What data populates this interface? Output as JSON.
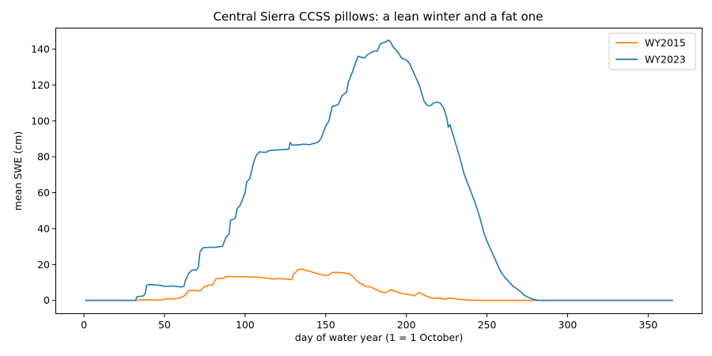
{
  "chart_data": {
    "type": "line",
    "title": "Central Sierra CCSS pillows: a lean winter and a fat one",
    "xlabel": "day of water year (1 = 1 October)",
    "ylabel": "mean SWE (cm)",
    "xlim": [
      -17.2,
      383.2
    ],
    "ylim": [
      -7.2,
      151.5
    ],
    "xticks": [
      0,
      50,
      100,
      150,
      200,
      250,
      300,
      350
    ],
    "yticks": [
      0,
      20,
      40,
      60,
      80,
      100,
      120,
      140
    ],
    "grid": false,
    "legend_position": "top-right",
    "series": [
      {
        "name": "WY2015",
        "color": "#ff7f0e",
        "points": [
          [
            1,
            0
          ],
          [
            33,
            0
          ],
          [
            35,
            0.4
          ],
          [
            48,
            0.2
          ],
          [
            52,
            1.0
          ],
          [
            55,
            0.8
          ],
          [
            60,
            1.4
          ],
          [
            63,
            3.0
          ],
          [
            65,
            5.5
          ],
          [
            70,
            5.5
          ],
          [
            72,
            5.2
          ],
          [
            75,
            7.8
          ],
          [
            80,
            9.0
          ],
          [
            82,
            12.0
          ],
          [
            87,
            12.5
          ],
          [
            88,
            13.3
          ],
          [
            95,
            13.2
          ],
          [
            100,
            13.3
          ],
          [
            105,
            13.0
          ],
          [
            110,
            12.8
          ],
          [
            115,
            12.2
          ],
          [
            118,
            11.8
          ],
          [
            120,
            12.2
          ],
          [
            125,
            11.9
          ],
          [
            129,
            11.6
          ],
          [
            130,
            14.5
          ],
          [
            133,
            17.2
          ],
          [
            135,
            17.4
          ],
          [
            140,
            16.2
          ],
          [
            145,
            14.8
          ],
          [
            150,
            13.8
          ],
          [
            152,
            14.2
          ],
          [
            154,
            15.5
          ],
          [
            158,
            15.6
          ],
          [
            162,
            15.2
          ],
          [
            165,
            14.8
          ],
          [
            170,
            10.2
          ],
          [
            175,
            7.8
          ],
          [
            178,
            7.5
          ],
          [
            180,
            6.5
          ],
          [
            185,
            4.5
          ],
          [
            188,
            4.4
          ],
          [
            190,
            6.0
          ],
          [
            193,
            5.0
          ],
          [
            197,
            3.8
          ],
          [
            200,
            3.5
          ],
          [
            205,
            2.6
          ],
          [
            208,
            4.4
          ],
          [
            212,
            2.5
          ],
          [
            215,
            1.5
          ],
          [
            218,
            1.0
          ],
          [
            220,
            1.5
          ],
          [
            224,
            0.5
          ],
          [
            226,
            1.2
          ],
          [
            230,
            1.0
          ],
          [
            233,
            0.6
          ],
          [
            240,
            0.1
          ],
          [
            245,
            0
          ],
          [
            365,
            0
          ]
        ]
      },
      {
        "name": "WY2023",
        "color": "#1f77b4",
        "points": [
          [
            1,
            0
          ],
          [
            32,
            0
          ],
          [
            33,
            2.0
          ],
          [
            37,
            2.5
          ],
          [
            38,
            4.0
          ],
          [
            39,
            8.5
          ],
          [
            41,
            8.8
          ],
          [
            48,
            8.3
          ],
          [
            50,
            7.8
          ],
          [
            55,
            8.0
          ],
          [
            60,
            7.5
          ],
          [
            62,
            7.7
          ],
          [
            63,
            11.0
          ],
          [
            65,
            15.0
          ],
          [
            67,
            16.8
          ],
          [
            70,
            17.0
          ],
          [
            71,
            18.5
          ],
          [
            72,
            27.0
          ],
          [
            74,
            29.4
          ],
          [
            80,
            29.6
          ],
          [
            82,
            29.5
          ],
          [
            84,
            30.0
          ],
          [
            86,
            30.1
          ],
          [
            88,
            35.0
          ],
          [
            90,
            37.0
          ],
          [
            91,
            44.8
          ],
          [
            93,
            45.2
          ],
          [
            94,
            46.0
          ],
          [
            95,
            51.0
          ],
          [
            97,
            53.0
          ],
          [
            100,
            60.0
          ],
          [
            101,
            66.0
          ],
          [
            103,
            68.0
          ],
          [
            105,
            76.0
          ],
          [
            107,
            81.0
          ],
          [
            109,
            82.8
          ],
          [
            111,
            82.5
          ],
          [
            113,
            82.5
          ],
          [
            115,
            83.5
          ],
          [
            120,
            83.8
          ],
          [
            124,
            84.0
          ],
          [
            127,
            84.2
          ],
          [
            128,
            88.0
          ],
          [
            129,
            86.5
          ],
          [
            132,
            86.6
          ],
          [
            136,
            87.0
          ],
          [
            140,
            86.8
          ],
          [
            145,
            88.0
          ],
          [
            147,
            90.0
          ],
          [
            150,
            97.0
          ],
          [
            152,
            100.0
          ],
          [
            154,
            108.0
          ],
          [
            157,
            108.8
          ],
          [
            158,
            109.5
          ],
          [
            160,
            114.0
          ],
          [
            163,
            116.0
          ],
          [
            164,
            121.5
          ],
          [
            166,
            126.0
          ],
          [
            168,
            131.0
          ],
          [
            170,
            136.0
          ],
          [
            174,
            135.0
          ],
          [
            176,
            137.0
          ],
          [
            180,
            139.0
          ],
          [
            182,
            139.0
          ],
          [
            184,
            143.0
          ],
          [
            187,
            144.0
          ],
          [
            189,
            145.0
          ],
          [
            190,
            144.2
          ],
          [
            192,
            141.0
          ],
          [
            195,
            138.0
          ],
          [
            197,
            135.0
          ],
          [
            200,
            134.0
          ],
          [
            202,
            132.0
          ],
          [
            205,
            126.0
          ],
          [
            208,
            120.0
          ],
          [
            211,
            111.0
          ],
          [
            213,
            108.5
          ],
          [
            215,
            108.5
          ],
          [
            217,
            110.0
          ],
          [
            219,
            110.5
          ],
          [
            221,
            110.0
          ],
          [
            223,
            107.5
          ],
          [
            225,
            102.0
          ],
          [
            226,
            96.5
          ],
          [
            227,
            98.0
          ],
          [
            230,
            89.0
          ],
          [
            233,
            80.0
          ],
          [
            236,
            70.0
          ],
          [
            239,
            63.0
          ],
          [
            242,
            56.0
          ],
          [
            245,
            48.0
          ],
          [
            248,
            38.0
          ],
          [
            250,
            33.0
          ],
          [
            253,
            27.0
          ],
          [
            256,
            21.0
          ],
          [
            258,
            17.0
          ],
          [
            260,
            14.0
          ],
          [
            263,
            11.0
          ],
          [
            266,
            8.0
          ],
          [
            270,
            5.5
          ],
          [
            273,
            3.0
          ],
          [
            276,
            1.5
          ],
          [
            279,
            0.5
          ],
          [
            282,
            0
          ],
          [
            365,
            0
          ]
        ]
      }
    ]
  }
}
